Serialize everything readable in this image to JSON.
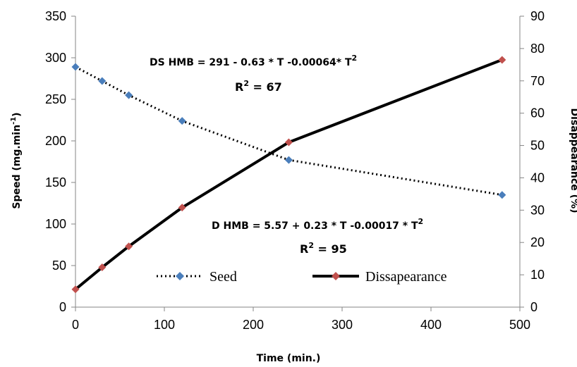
{
  "chart_data": {
    "type": "line",
    "xlabel": "Time (min.)",
    "ylabel_left": "Speed (mg.min",
    "ylabel_left_sup": "-1",
    "ylabel_left_end": ")",
    "ylabel_right": "Disappearance  (%)",
    "xlim": [
      0,
      500
    ],
    "x_ticks": [
      0,
      100,
      200,
      300,
      400,
      500
    ],
    "ylim_left": [
      0,
      350
    ],
    "y_left_ticks": [
      0,
      50,
      100,
      150,
      200,
      250,
      300,
      350
    ],
    "ylim_right": [
      0,
      90
    ],
    "y_right_ticks": [
      0,
      10,
      20,
      30,
      40,
      50,
      60,
      70,
      80,
      90
    ],
    "grid": false,
    "legend_position": "bottom-center",
    "series": [
      {
        "name": "Seed",
        "axis": "left",
        "style": "dotted",
        "line_color": "#000000",
        "marker_color": "#4a7ebb",
        "x": [
          0,
          30,
          60,
          120,
          240,
          480
        ],
        "values": [
          289,
          272,
          255,
          224,
          177,
          135
        ]
      },
      {
        "name": "Dissapearance",
        "axis": "right",
        "style": "solid",
        "line_color": "#000000",
        "marker_color": "#c0504d",
        "x": [
          0,
          30,
          60,
          120,
          240,
          480
        ],
        "values": [
          5.5,
          12.3,
          18.8,
          30.8,
          51.0,
          76.5
        ]
      }
    ],
    "annotations": {
      "seed_equation": "DS HMB = 291 - 0.63 * T -0.00064* T",
      "seed_equation_sup": "2",
      "seed_r2_label": "R",
      "seed_r2_sup": "2",
      "seed_r2_value": " =  67",
      "dis_equation": "D HMB = 5.57 + 0.23 * T -0.00017 * T",
      "dis_equation_sup": "2",
      "dis_r2_label": "R",
      "dis_r2_sup": "2",
      "dis_r2_value": " =  95"
    }
  }
}
